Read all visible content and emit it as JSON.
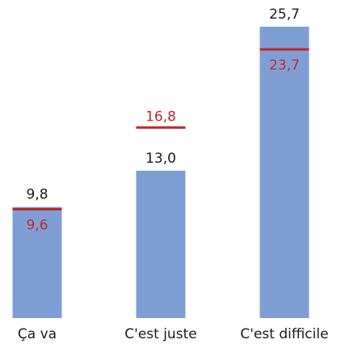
{
  "chart_data": {
    "type": "bar",
    "categories": [
      "Ça va",
      "C'est juste",
      "C'est difficile"
    ],
    "series": [
      {
        "color": "#7f9fd4",
        "values": [
          9.8,
          13.0,
          25.7
        ],
        "value_labels": [
          "9,8",
          "13,0",
          "25,7"
        ],
        "label_color": "#1a1a1a"
      },
      {
        "color": "#c0282d",
        "values": [
          9.6,
          16.8,
          23.7
        ],
        "value_labels": [
          "9,6",
          "16,8",
          "23,7"
        ],
        "label_color": "#c0282d"
      }
    ]
  }
}
